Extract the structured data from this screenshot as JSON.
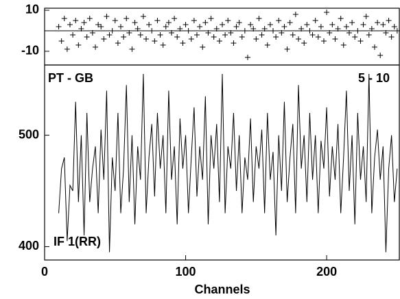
{
  "chart_data": [
    {
      "type": "scatter",
      "color": "#000000",
      "x": [
        10,
        12,
        14,
        16,
        18,
        20,
        22,
        24,
        26,
        28,
        30,
        32,
        34,
        36,
        38,
        40,
        42,
        44,
        46,
        48,
        50,
        52,
        54,
        56,
        58,
        60,
        62,
        64,
        66,
        68,
        70,
        72,
        74,
        76,
        78,
        80,
        82,
        84,
        86,
        88,
        90,
        92,
        94,
        96,
        98,
        100,
        102,
        104,
        106,
        108,
        110,
        112,
        114,
        116,
        118,
        120,
        122,
        124,
        126,
        128,
        130,
        132,
        134,
        136,
        138,
        140,
        142,
        144,
        146,
        148,
        150,
        152,
        154,
        156,
        158,
        160,
        162,
        164,
        166,
        168,
        170,
        172,
        174,
        176,
        178,
        180,
        182,
        184,
        186,
        188,
        190,
        192,
        194,
        196,
        198,
        200,
        202,
        204,
        206,
        208,
        210,
        212,
        214,
        216,
        218,
        220,
        222,
        224,
        226,
        228,
        230,
        232,
        234,
        236,
        238,
        240,
        242,
        244,
        246,
        248,
        250
      ],
      "values": [
        2,
        -5,
        6,
        -9,
        3,
        -2,
        5,
        -7,
        1,
        4,
        -3,
        6,
        -1,
        -8,
        3,
        2,
        -4,
        7,
        -2,
        0,
        5,
        -6,
        2,
        -3,
        6,
        -1,
        -9,
        4,
        1,
        -2,
        7,
        -4,
        3,
        0,
        -5,
        5,
        -2,
        -7,
        2,
        4,
        -1,
        6,
        -3,
        1,
        -6,
        3,
        0,
        -4,
        5,
        -2,
        2,
        -8,
        4,
        -1,
        6,
        -3,
        1,
        -5,
        3,
        -2,
        5,
        -1,
        -6,
        2,
        4,
        -3,
        0,
        -13,
        3,
        1,
        -4,
        6,
        -2,
        1,
        -7,
        3,
        0,
        -3,
        5,
        -1,
        2,
        -9,
        4,
        -2,
        8,
        -4,
        1,
        -6,
        3,
        0,
        -2,
        5,
        -3,
        2,
        -5,
        9,
        -1,
        3,
        -4,
        1,
        6,
        -7,
        2,
        -1,
        4,
        -3,
        0,
        -5,
        3,
        7,
        -2,
        1,
        -8,
        4,
        -12,
        3,
        -1,
        5,
        -3,
        2,
        0
      ],
      "xlim": [
        0,
        252
      ],
      "ylim": [
        -16.7,
        11
      ],
      "yticks": [
        -10,
        10
      ],
      "zero_line": true
    },
    {
      "type": "line",
      "color": "#000000",
      "annotations": [
        "PT - GB",
        "5 - 10",
        "IF 1(RR)"
      ],
      "xlabel": "Channels",
      "x": [
        10,
        12,
        14,
        16,
        18,
        20,
        22,
        24,
        26,
        28,
        30,
        32,
        34,
        36,
        38,
        40,
        42,
        44,
        46,
        48,
        50,
        52,
        54,
        56,
        58,
        60,
        62,
        64,
        66,
        68,
        70,
        72,
        74,
        76,
        78,
        80,
        82,
        84,
        86,
        88,
        90,
        92,
        94,
        96,
        98,
        100,
        102,
        104,
        106,
        108,
        110,
        112,
        114,
        116,
        118,
        120,
        122,
        124,
        126,
        128,
        130,
        132,
        134,
        136,
        138,
        140,
        142,
        144,
        146,
        148,
        150,
        152,
        154,
        156,
        158,
        160,
        162,
        164,
        166,
        168,
        170,
        172,
        174,
        176,
        178,
        180,
        182,
        184,
        186,
        188,
        190,
        192,
        194,
        196,
        198,
        200,
        202,
        204,
        206,
        208,
        210,
        212,
        214,
        216,
        218,
        220,
        222,
        224,
        226,
        228,
        230,
        232,
        234,
        236,
        238,
        240,
        242,
        244,
        246,
        248,
        250
      ],
      "values": [
        430,
        470,
        480,
        405,
        455,
        450,
        530,
        440,
        500,
        410,
        520,
        440,
        470,
        490,
        430,
        505,
        460,
        540,
        395,
        480,
        450,
        520,
        430,
        470,
        545,
        440,
        500,
        420,
        490,
        460,
        555,
        430,
        480,
        510,
        445,
        520,
        470,
        500,
        430,
        540,
        460,
        490,
        420,
        515,
        470,
        500,
        430,
        480,
        525,
        445,
        490,
        460,
        535,
        420,
        500,
        470,
        510,
        440,
        555,
        430,
        490,
        470,
        520,
        450,
        500,
        430,
        480,
        460,
        515,
        440,
        490,
        470,
        505,
        430,
        520,
        460,
        485,
        410,
        500,
        450,
        530,
        440,
        480,
        510,
        430,
        545,
        470,
        500,
        440,
        520,
        460,
        500,
        430,
        495,
        470,
        525,
        445,
        490,
        460,
        510,
        430,
        480,
        540,
        450,
        500,
        420,
        520,
        460,
        490,
        440,
        555,
        430,
        480,
        505,
        460,
        490,
        395,
        470,
        500,
        440,
        470
      ],
      "xlim": [
        0,
        252
      ],
      "ylim": [
        388,
        563
      ],
      "xticks": [
        0,
        100,
        200
      ],
      "yticks": [
        400,
        500
      ]
    }
  ]
}
